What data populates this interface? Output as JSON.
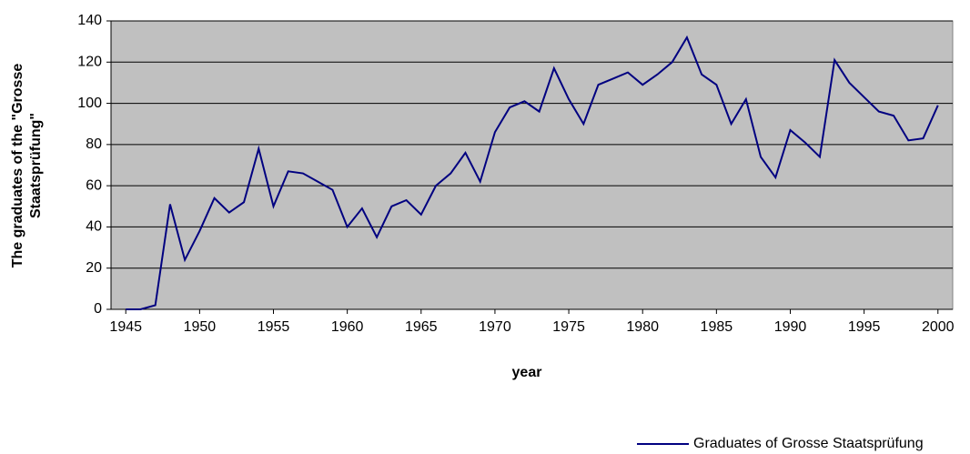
{
  "chart_data": {
    "type": "line",
    "xlabel": "year",
    "ylabel": [
      "The graduates of the \"Grosse",
      "Staatsprüfung\""
    ],
    "x": [
      1945,
      1946,
      1947,
      1948,
      1949,
      1950,
      1951,
      1952,
      1953,
      1954,
      1955,
      1956,
      1957,
      1958,
      1959,
      1960,
      1961,
      1962,
      1963,
      1964,
      1965,
      1966,
      1967,
      1968,
      1969,
      1970,
      1971,
      1972,
      1973,
      1974,
      1975,
      1976,
      1977,
      1978,
      1979,
      1980,
      1981,
      1982,
      1983,
      1984,
      1985,
      1986,
      1987,
      1988,
      1989,
      1990,
      1991,
      1992,
      1993,
      1994,
      1995,
      1996,
      1997,
      1998,
      1999,
      2000
    ],
    "series": [
      {
        "name": "Graduates of Grosse Staatsprüfung",
        "color": "#000080",
        "values": [
          0,
          0,
          2,
          51,
          24,
          38,
          54,
          47,
          52,
          78,
          50,
          67,
          66,
          62,
          58,
          40,
          49,
          35,
          50,
          53,
          46,
          60,
          66,
          76,
          62,
          86,
          98,
          101,
          96,
          117,
          102,
          90,
          109,
          112,
          115,
          109,
          114,
          120,
          132,
          114,
          109,
          90,
          102,
          74,
          64,
          87,
          81,
          74,
          121,
          110,
          103,
          96,
          94,
          82,
          83,
          99
        ]
      }
    ],
    "xlim": [
      1944,
      2001
    ],
    "xticks": [
      1945,
      1950,
      1955,
      1960,
      1965,
      1970,
      1975,
      1980,
      1985,
      1990,
      1995,
      2000
    ],
    "ylim": [
      0,
      140
    ],
    "yticks": [
      0,
      20,
      40,
      60,
      80,
      100,
      120,
      140
    ],
    "grid": true,
    "plot_background": "#c0c0c0",
    "legend": "bottom-right"
  }
}
